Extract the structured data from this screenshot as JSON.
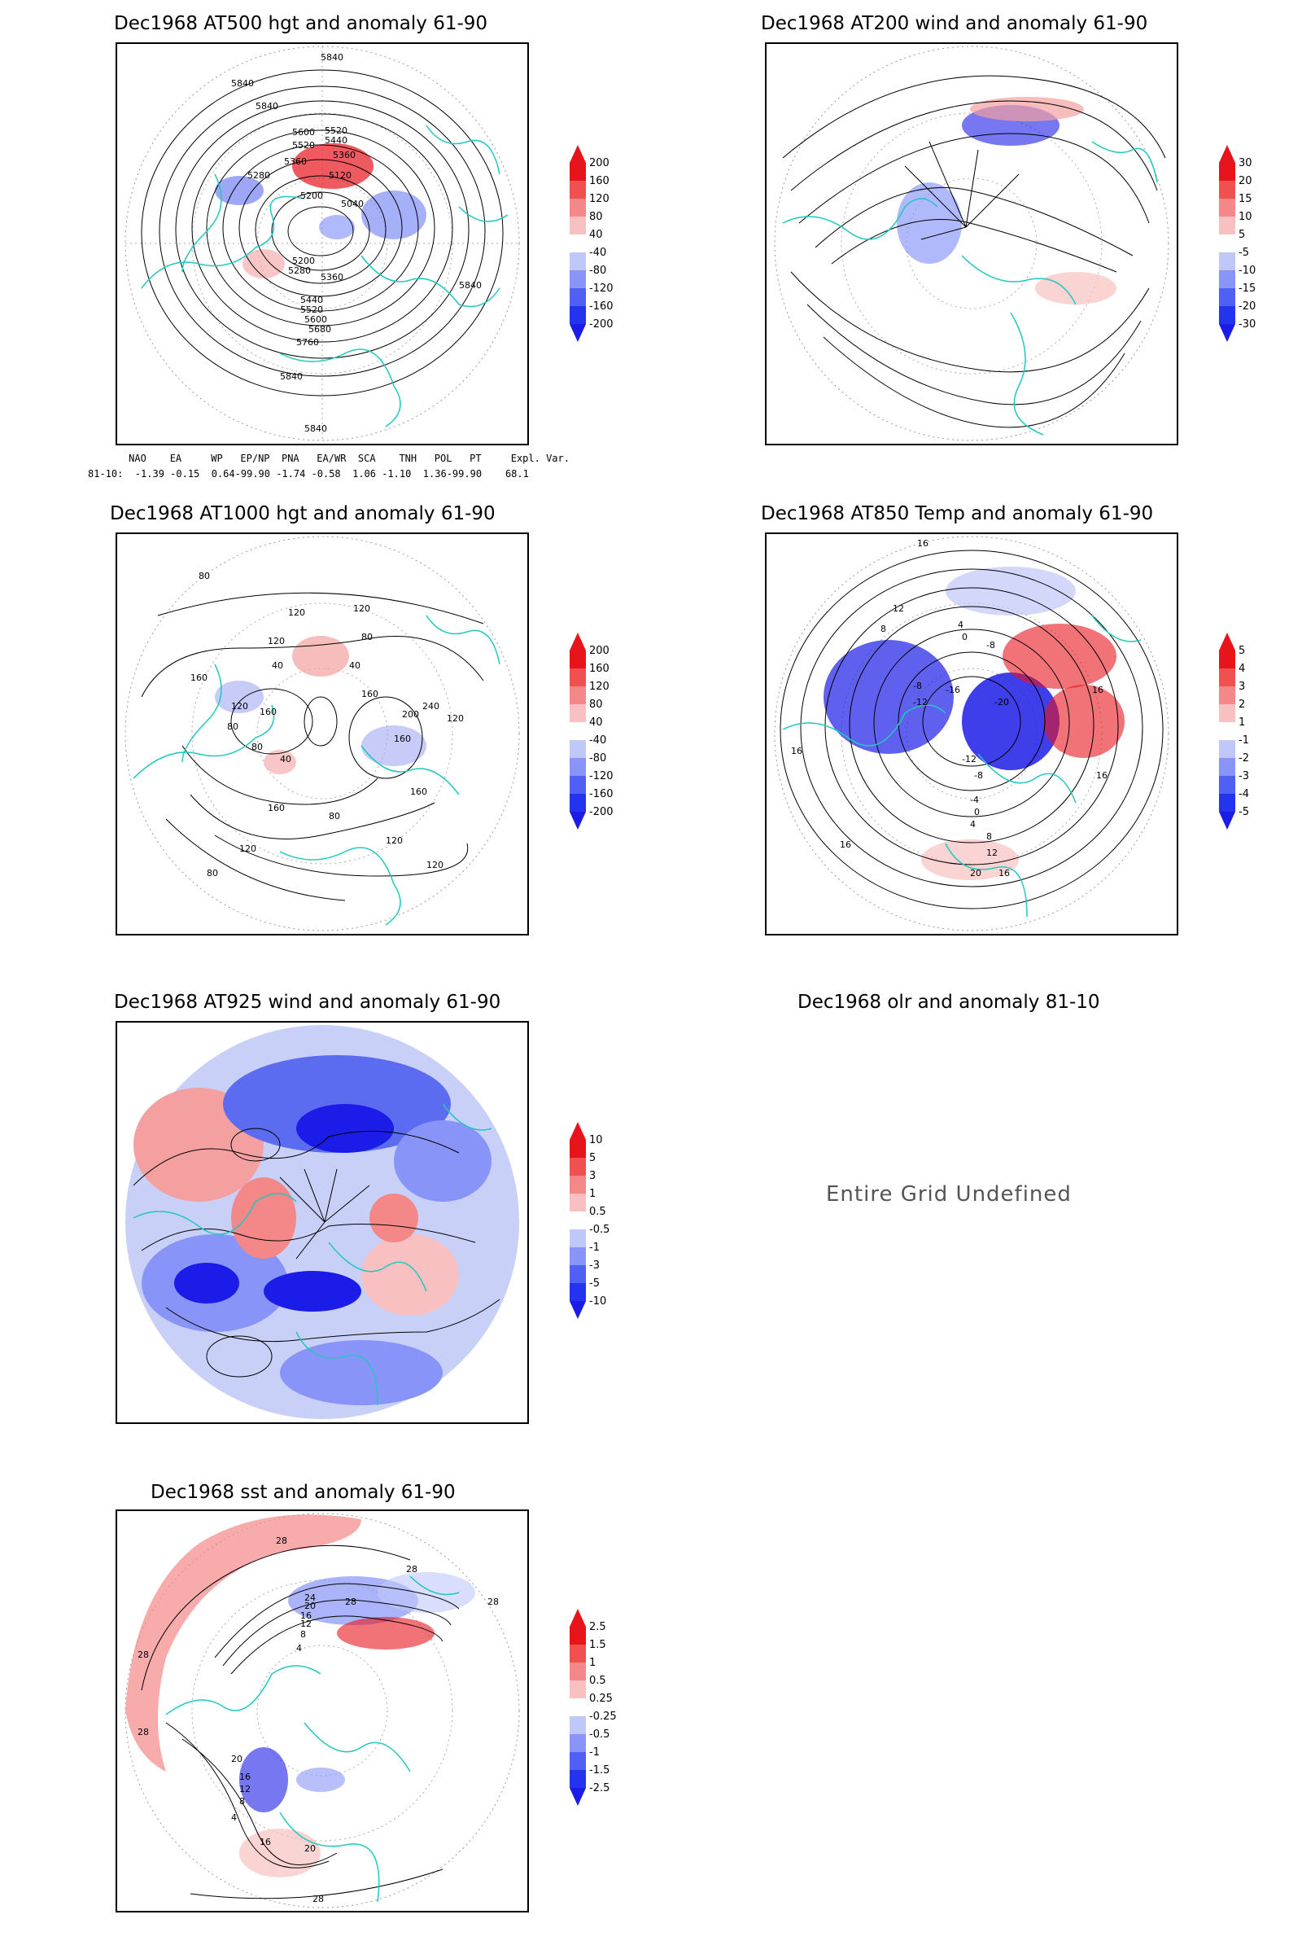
{
  "panels": [
    {
      "id": "p500",
      "title": "Dec1968 AT500 hgt and anomaly 61-90",
      "contour_labels": [
        "5840",
        "5840",
        "5840",
        "5600",
        "5520",
        "5520",
        "5440",
        "5360",
        "5360",
        "5280",
        "5200",
        "5120",
        "5040",
        "5200",
        "5280",
        "5360",
        "5440",
        "5520",
        "5600",
        "5680",
        "5760",
        "5840",
        "5840",
        "5840"
      ],
      "colorbar": [
        "200",
        "160",
        "120",
        "80",
        "40",
        "-40",
        "-80",
        "-120",
        "-160",
        "-200"
      ]
    },
    {
      "id": "p200",
      "title": "Dec1968 AT200 wind and anomaly 61-90",
      "colorbar": [
        "30",
        "20",
        "15",
        "10",
        "5",
        "-5",
        "-10",
        "-15",
        "-20",
        "-30"
      ]
    },
    {
      "id": "p1000",
      "title": "Dec1968 AT1000 hgt and anomaly 61-90",
      "contour_labels": [
        "80",
        "120",
        "120",
        "80",
        "120",
        "160",
        "40",
        "40",
        "120",
        "160",
        "80",
        "160",
        "200",
        "240",
        "80",
        "160",
        "40",
        "160",
        "160",
        "120",
        "80",
        "120",
        "120",
        "80",
        "120"
      ],
      "colorbar": [
        "200",
        "160",
        "120",
        "80",
        "40",
        "-40",
        "-80",
        "-120",
        "-160",
        "-200"
      ]
    },
    {
      "id": "p850",
      "title": "Dec1968 AT850 Temp and anomaly 61-90",
      "contour_labels": [
        "16",
        "12",
        "8",
        "4",
        "0",
        "-8",
        "-12",
        "-16",
        "-20",
        "-8",
        "16",
        "16",
        "-12",
        "-8",
        "-4",
        "0",
        "4",
        "8",
        "12",
        "16",
        "20",
        "16",
        "16"
      ],
      "colorbar": [
        "5",
        "4",
        "3",
        "2",
        "1",
        "-1",
        "-2",
        "-3",
        "-4",
        "-5"
      ]
    },
    {
      "id": "p925",
      "title": "Dec1968 AT925 wind and anomaly 61-90",
      "colorbar": [
        "10",
        "5",
        "3",
        "1",
        "0.5",
        "-0.5",
        "-1",
        "-3",
        "-5",
        "-10"
      ]
    },
    {
      "id": "polr",
      "title": "Dec1968 olr and anomaly 81-10",
      "message": "Entire Grid Undefined"
    },
    {
      "id": "psst",
      "title": "Dec1968 sst and anomaly 61-90",
      "contour_labels": [
        "28",
        "28",
        "24",
        "20",
        "16",
        "12",
        "8",
        "4",
        "28",
        "28",
        "28",
        "28",
        "20",
        "16",
        "12",
        "8",
        "4",
        "16",
        "20",
        "28"
      ],
      "colorbar": [
        "2.5",
        "1.5",
        "1",
        "0.5",
        "0.25",
        "-0.25",
        "-0.5",
        "-1",
        "-1.5",
        "-2.5"
      ]
    }
  ],
  "teleconnections": {
    "header": "     NAO    EA     WP   EP/NP  PNA   EA/WR  SCA    TNH   POL   PT     Expl. Var.",
    "values": "81-10:  -1.39 -0.15  0.64-99.90 -1.74 -0.58  1.06 -1.10  1.36-99.90    68.1"
  },
  "colors": {
    "red": "#e8141c",
    "blue": "#1c1ce8",
    "coast": "#20c8c0"
  }
}
